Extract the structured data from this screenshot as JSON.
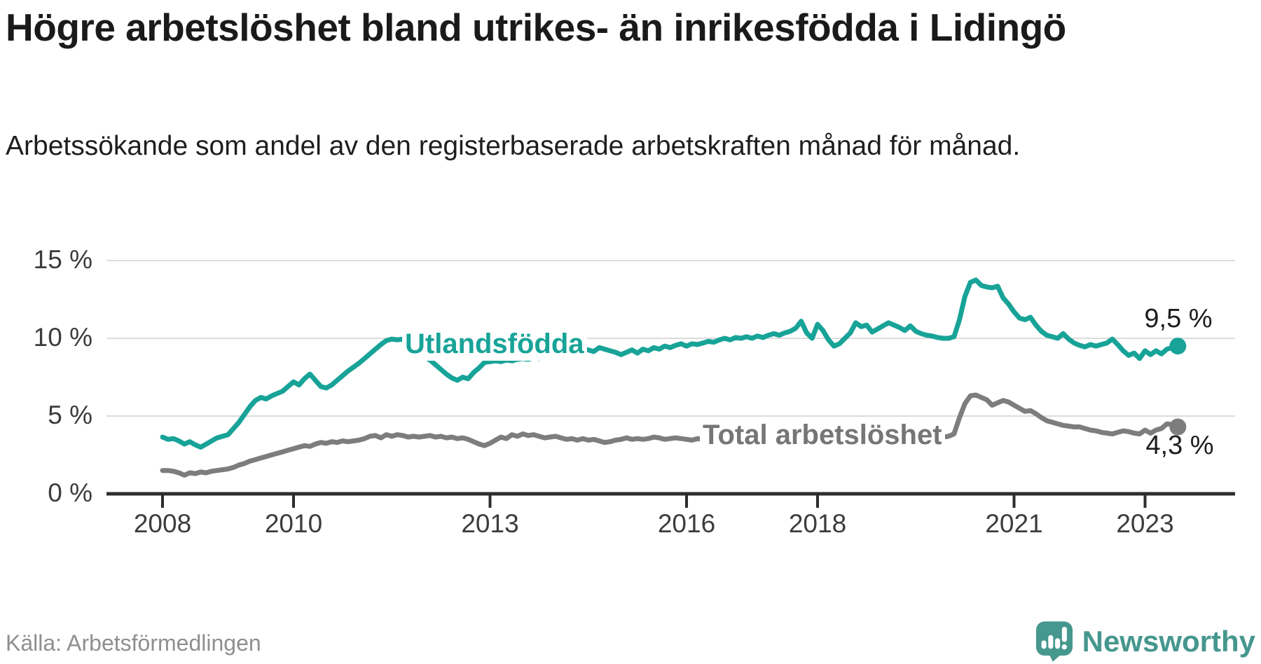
{
  "header": {
    "title": "Högre arbetslöshet bland utrikes- än inrikesfödda i Lidingö",
    "subtitle": "Arbetssökande som andel av den registerbaserade arbetskraften månad för månad."
  },
  "chart_data": {
    "type": "line",
    "frequency": "monthly",
    "x_start": "2008-01",
    "x_end": "2023-07",
    "ylim": [
      0,
      16.5
    ],
    "grid": "horizontal",
    "y_ticks": [
      {
        "label": "0 %",
        "value": 0
      },
      {
        "label": "5 %",
        "value": 5
      },
      {
        "label": "10 %",
        "value": 10
      },
      {
        "label": "15 %",
        "value": 15
      }
    ],
    "x_ticks": [
      {
        "label": "2008",
        "year": 2008
      },
      {
        "label": "2010",
        "year": 2010
      },
      {
        "label": "2013",
        "year": 2013
      },
      {
        "label": "2016",
        "year": 2016
      },
      {
        "label": "2018",
        "year": 2018
      },
      {
        "label": "2021",
        "year": 2021
      },
      {
        "label": "2023",
        "year": 2023
      }
    ],
    "series": [
      {
        "name": "Utlandsfödda",
        "color": "#18a398",
        "end_label": "9,5 %",
        "end_value": 9.5,
        "values": [
          3.65,
          3.5,
          3.55,
          3.4,
          3.2,
          3.35,
          3.15,
          3.0,
          3.2,
          3.4,
          3.6,
          3.7,
          3.8,
          4.2,
          4.6,
          5.1,
          5.6,
          6.0,
          6.2,
          6.1,
          6.3,
          6.45,
          6.6,
          6.9,
          7.2,
          7.0,
          7.4,
          7.7,
          7.3,
          6.9,
          6.8,
          7.0,
          7.3,
          7.6,
          7.9,
          8.15,
          8.4,
          8.7,
          9.0,
          9.3,
          9.6,
          9.85,
          9.95,
          9.9,
          9.95,
          9.7,
          9.4,
          9.1,
          8.8,
          8.6,
          8.3,
          8.0,
          7.7,
          7.45,
          7.3,
          7.5,
          7.4,
          7.8,
          8.1,
          8.45,
          8.5,
          8.55,
          8.5,
          8.6,
          8.55,
          8.65,
          8.7,
          8.65,
          8.75,
          8.7,
          8.85,
          8.9,
          9.0,
          9.15,
          9.05,
          9.25,
          9.15,
          9.35,
          9.25,
          9.15,
          9.4,
          9.3,
          9.2,
          9.1,
          8.95,
          9.1,
          9.25,
          9.05,
          9.3,
          9.2,
          9.4,
          9.3,
          9.5,
          9.4,
          9.55,
          9.65,
          9.5,
          9.65,
          9.6,
          9.7,
          9.8,
          9.75,
          9.9,
          10.0,
          9.9,
          10.05,
          10.0,
          10.1,
          10.0,
          10.15,
          10.05,
          10.2,
          10.3,
          10.2,
          10.35,
          10.45,
          10.65,
          11.1,
          10.35,
          10.0,
          10.9,
          10.5,
          9.9,
          9.5,
          9.65,
          10.0,
          10.35,
          11.0,
          10.75,
          10.85,
          10.4,
          10.6,
          10.8,
          11.0,
          10.85,
          10.7,
          10.5,
          10.8,
          10.45,
          10.3,
          10.2,
          10.15,
          10.05,
          10.0,
          10.0,
          10.1,
          11.2,
          12.7,
          13.6,
          13.75,
          13.4,
          13.3,
          13.25,
          13.35,
          12.6,
          12.2,
          11.7,
          11.3,
          11.2,
          11.35,
          10.85,
          10.45,
          10.2,
          10.1,
          10.0,
          10.3,
          9.95,
          9.7,
          9.55,
          9.45,
          9.6,
          9.5,
          9.6,
          9.7,
          9.95,
          9.6,
          9.2,
          8.9,
          9.05,
          8.7,
          9.2,
          8.95,
          9.2,
          9.0,
          9.3,
          9.4,
          9.5
        ]
      },
      {
        "name": "Total arbetslöshet",
        "color": "#7d7d7d",
        "end_label": "4,3 %",
        "end_value": 4.3,
        "values": [
          1.5,
          1.5,
          1.45,
          1.35,
          1.2,
          1.35,
          1.3,
          1.4,
          1.35,
          1.45,
          1.5,
          1.55,
          1.6,
          1.7,
          1.85,
          1.95,
          2.1,
          2.2,
          2.3,
          2.4,
          2.5,
          2.6,
          2.7,
          2.8,
          2.9,
          3.0,
          3.1,
          3.05,
          3.2,
          3.3,
          3.25,
          3.35,
          3.3,
          3.4,
          3.35,
          3.4,
          3.45,
          3.55,
          3.7,
          3.75,
          3.6,
          3.8,
          3.7,
          3.8,
          3.75,
          3.65,
          3.7,
          3.65,
          3.7,
          3.75,
          3.65,
          3.7,
          3.6,
          3.65,
          3.55,
          3.6,
          3.5,
          3.35,
          3.2,
          3.1,
          3.25,
          3.45,
          3.65,
          3.55,
          3.8,
          3.7,
          3.85,
          3.75,
          3.8,
          3.7,
          3.6,
          3.65,
          3.7,
          3.6,
          3.5,
          3.55,
          3.45,
          3.55,
          3.45,
          3.5,
          3.4,
          3.3,
          3.35,
          3.45,
          3.5,
          3.6,
          3.5,
          3.55,
          3.5,
          3.55,
          3.65,
          3.6,
          3.5,
          3.55,
          3.6,
          3.55,
          3.5,
          3.45,
          3.55,
          3.5,
          3.6,
          3.55,
          3.6,
          3.55,
          3.6,
          3.65,
          3.6,
          3.65,
          3.6,
          3.65,
          3.7,
          3.65,
          3.7,
          3.75,
          3.7,
          3.75,
          3.7,
          3.75,
          3.7,
          3.65,
          3.6,
          3.65,
          3.6,
          3.55,
          3.6,
          3.65,
          3.6,
          3.65,
          3.7,
          3.65,
          3.6,
          3.65,
          3.6,
          3.55,
          3.6,
          3.65,
          3.6,
          3.55,
          3.5,
          3.55,
          3.6,
          3.55,
          3.6,
          3.65,
          3.7,
          3.85,
          4.9,
          5.8,
          6.3,
          6.35,
          6.2,
          6.05,
          5.7,
          5.85,
          6.0,
          5.9,
          5.7,
          5.5,
          5.3,
          5.35,
          5.15,
          4.9,
          4.7,
          4.6,
          4.5,
          4.4,
          4.35,
          4.3,
          4.3,
          4.2,
          4.1,
          4.05,
          3.95,
          3.9,
          3.85,
          3.95,
          4.05,
          4.0,
          3.9,
          3.85,
          4.1,
          3.9,
          4.1,
          4.2,
          4.5,
          4.45,
          4.3
        ]
      }
    ],
    "colors": {
      "gridline": "#dcdcdc",
      "axis": "#2d2d2d",
      "tick_text": "#3c3c3c",
      "value_label_text": "#1d1d1d"
    }
  },
  "footer": {
    "source": "Källa: Arbetsförmedlingen",
    "brand": "Newsworthy",
    "brand_color": "#46978e"
  }
}
